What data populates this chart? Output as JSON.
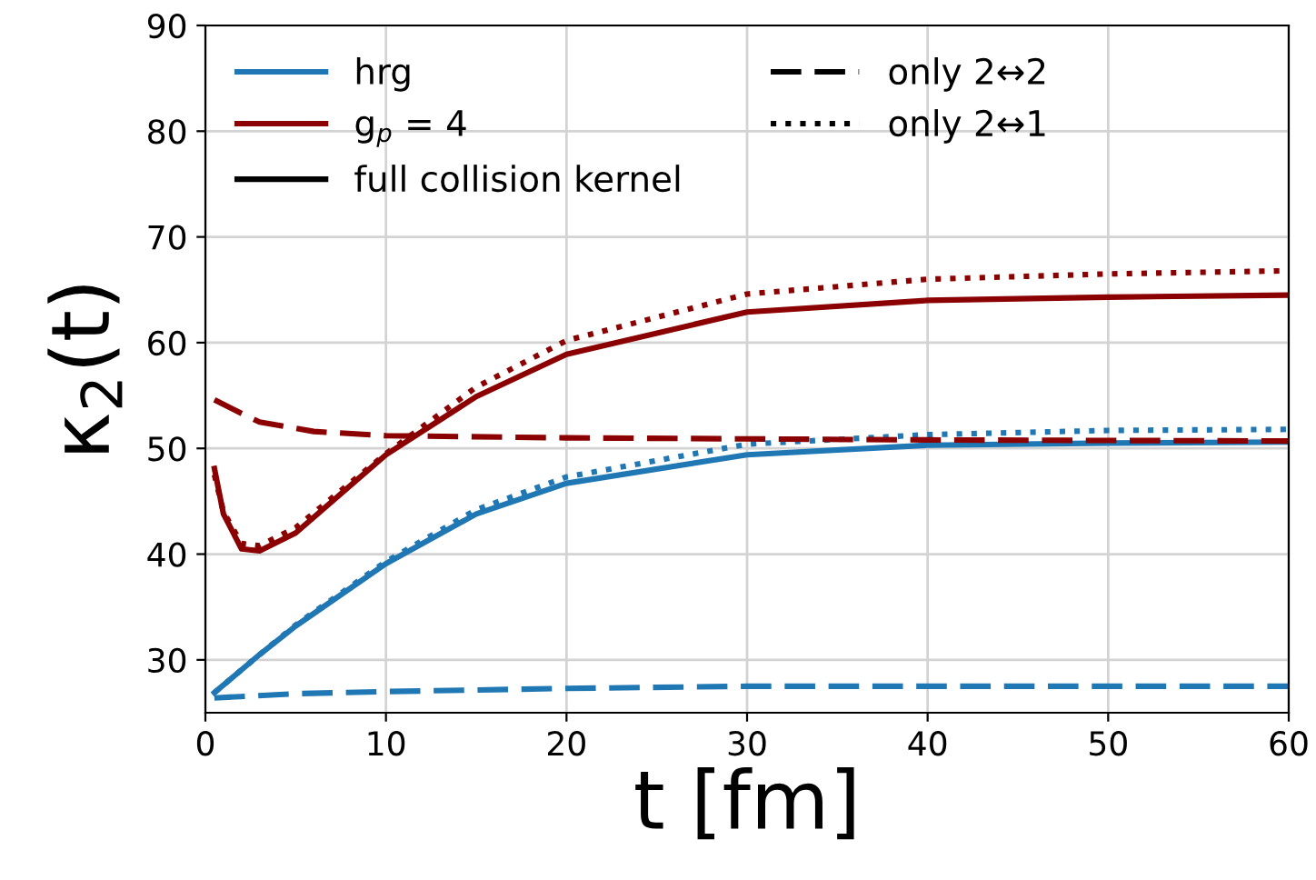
{
  "chart_data": {
    "type": "line",
    "xlabel": "t [fm]",
    "ylabel": "κ$_{2}$(t)",
    "xlim": [
      0,
      60
    ],
    "ylim": [
      25,
      90
    ],
    "xticks": [
      0,
      10,
      20,
      30,
      40,
      50,
      60
    ],
    "yticks": [
      30,
      40,
      50,
      60,
      70,
      80,
      90
    ],
    "grid": true,
    "legend": "top left",
    "series": [
      {
        "name": "hrg",
        "color": "#1f77b4",
        "line_style": "solid",
        "x": [
          0.5,
          3,
          5,
          10,
          15,
          20,
          30,
          40,
          50,
          60
        ],
        "values": [
          26.9,
          30.5,
          33.2,
          39.1,
          43.8,
          46.7,
          49.4,
          50.3,
          50.5,
          50.6
        ]
      },
      {
        "color": "#1f77b4",
        "line_style": "dashed",
        "x": [
          0.5,
          5,
          10,
          20,
          30,
          40,
          50,
          60
        ],
        "values": [
          26.4,
          26.8,
          27.0,
          27.3,
          27.5,
          27.5,
          27.5,
          27.5
        ]
      },
      {
        "color": "#1f77b4",
        "line_style": "dotted",
        "x": [
          0.5,
          3,
          5,
          10,
          15,
          20,
          30,
          40,
          50,
          60
        ],
        "values": [
          26.9,
          30.5,
          33.3,
          39.3,
          44.2,
          47.3,
          50.4,
          51.3,
          51.7,
          51.8
        ]
      },
      {
        "name": "g$_{p}$ = 4",
        "color": "#8b0000",
        "line_style": "solid",
        "x": [
          0.5,
          1,
          2,
          3,
          5,
          10,
          15,
          20,
          30,
          40,
          50,
          60
        ],
        "values": [
          48.1,
          43.8,
          40.5,
          40.3,
          42.0,
          49.4,
          54.9,
          58.9,
          62.9,
          64.0,
          64.3,
          64.5
        ]
      },
      {
        "color": "#8b0000",
        "line_style": "dashed",
        "x": [
          0.5,
          2,
          3,
          6,
          10,
          20,
          30,
          40,
          60
        ],
        "values": [
          54.6,
          53.3,
          52.5,
          51.6,
          51.2,
          51.0,
          50.9,
          50.8,
          50.7
        ]
      },
      {
        "color": "#8b0000",
        "line_style": "dotted",
        "x": [
          0.5,
          1,
          2,
          3,
          5,
          10,
          15,
          20,
          30,
          40,
          50,
          60
        ],
        "values": [
          47.5,
          44.0,
          41.0,
          40.8,
          42.5,
          49.5,
          55.8,
          60.2,
          64.6,
          66.0,
          66.5,
          66.8
        ]
      },
      {
        "name": "full collision kernel",
        "color": "#000000",
        "line_style": "solid"
      },
      {
        "name": "only 2↔2",
        "color": "#000000",
        "line_style": "dashed"
      },
      {
        "name": "only 2↔1",
        "color": "#000000",
        "line_style": "dotted"
      }
    ]
  }
}
